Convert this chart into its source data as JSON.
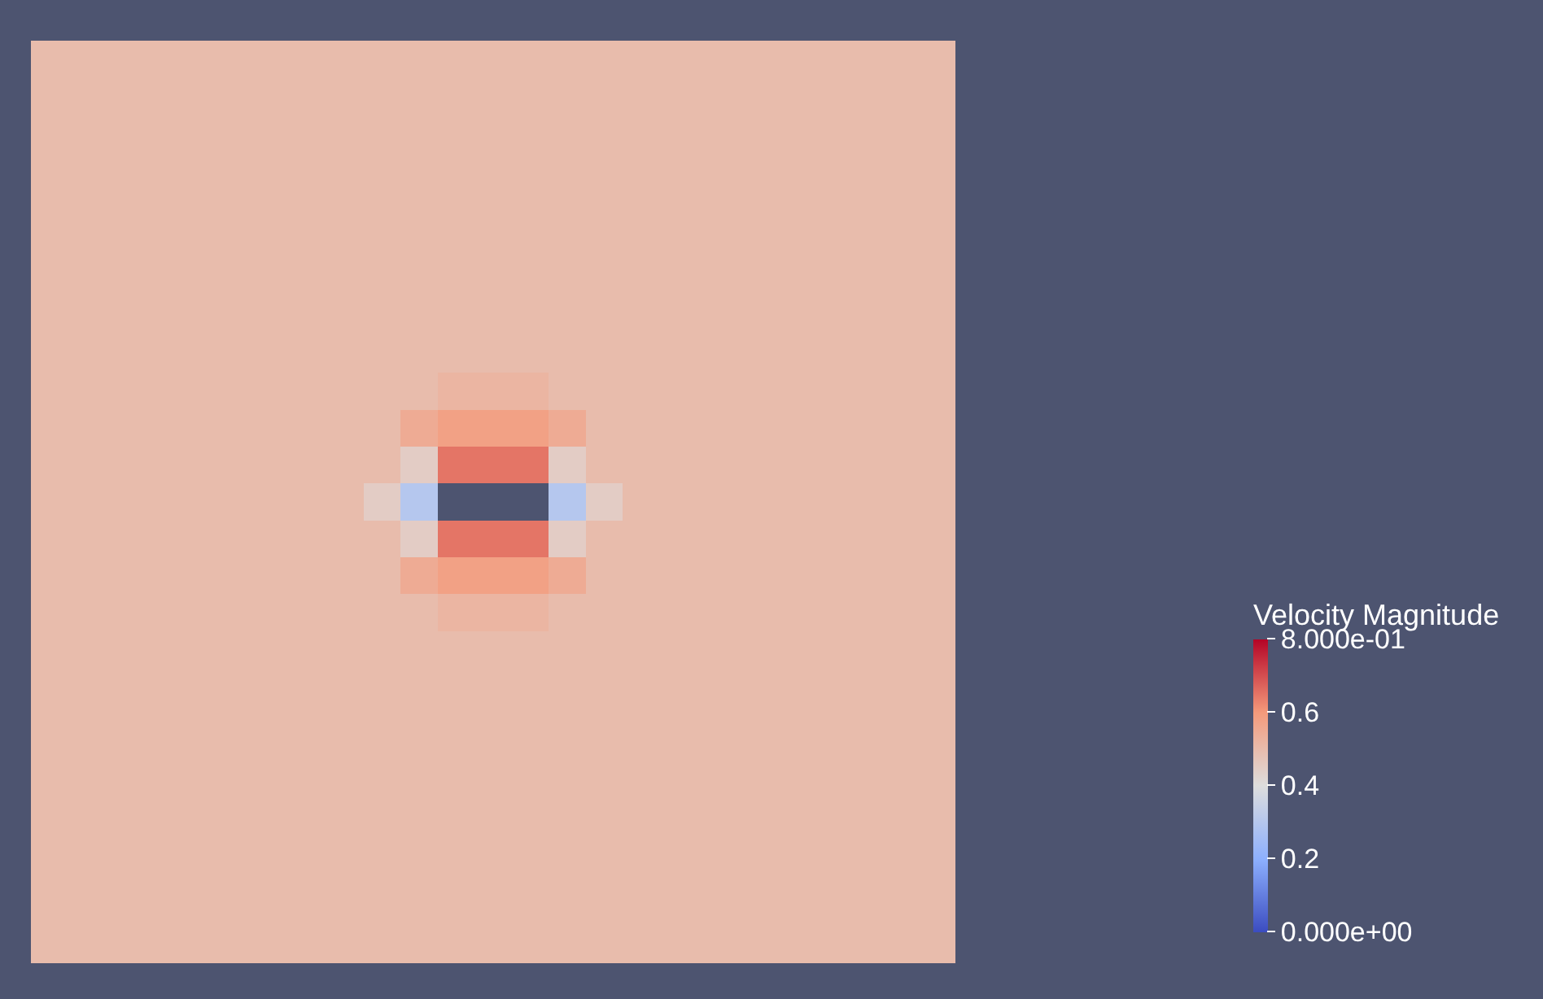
{
  "chart_data": {
    "type": "heatmap",
    "clabel": "Velocity Magnitude",
    "categories": [
      null,
      null,
      null,
      null,
      null,
      null,
      null,
      null,
      null,
      null,
      null,
      null,
      null,
      null,
      null,
      null,
      null,
      null,
      null,
      null,
      null,
      null,
      null,
      null,
      null
    ],
    "y_categories": [
      null,
      null,
      null,
      null,
      null,
      null,
      null,
      null,
      null,
      null,
      null,
      null,
      null,
      null,
      null,
      null,
      null,
      null,
      null,
      null,
      null,
      null,
      null,
      null,
      null
    ],
    "clim": [
      0,
      0.8
    ],
    "cticks": [
      {
        "value": 0,
        "label": "0.000e+00"
      },
      0.2,
      0.4,
      0.6,
      {
        "value": 0.8,
        "label": "8.000e-01"
      }
    ],
    "cells": [
      [
        0.5,
        0.5,
        0.5,
        0.5,
        0.5,
        0.5,
        0.5,
        0.5,
        0.5,
        0.5,
        0.5,
        0.5,
        0.5,
        0.5,
        0.5,
        0.5,
        0.5,
        0.5,
        0.5,
        0.5,
        0.5,
        0.5,
        0.5,
        0.5,
        0.5
      ],
      [
        0.5,
        0.5,
        0.5,
        0.5,
        0.5,
        0.5,
        0.5,
        0.5,
        0.5,
        0.5,
        0.5,
        0.5,
        0.5,
        0.5,
        0.5,
        0.5,
        0.5,
        0.5,
        0.5,
        0.5,
        0.5,
        0.5,
        0.5,
        0.5,
        0.5
      ],
      [
        0.5,
        0.5,
        0.5,
        0.5,
        0.5,
        0.5,
        0.5,
        0.5,
        0.5,
        0.5,
        0.5,
        0.5,
        0.5,
        0.5,
        0.5,
        0.5,
        0.5,
        0.5,
        0.5,
        0.5,
        0.5,
        0.5,
        0.5,
        0.5,
        0.5
      ],
      [
        0.5,
        0.5,
        0.5,
        0.5,
        0.5,
        0.5,
        0.5,
        0.5,
        0.5,
        0.5,
        0.5,
        0.5,
        0.5,
        0.5,
        0.5,
        0.5,
        0.5,
        0.5,
        0.5,
        0.5,
        0.5,
        0.5,
        0.5,
        0.5,
        0.5
      ],
      [
        0.5,
        0.5,
        0.5,
        0.5,
        0.5,
        0.5,
        0.5,
        0.5,
        0.5,
        0.5,
        0.5,
        0.5,
        0.5,
        0.5,
        0.5,
        0.5,
        0.5,
        0.5,
        0.5,
        0.5,
        0.5,
        0.5,
        0.5,
        0.5,
        0.5
      ],
      [
        0.5,
        0.5,
        0.5,
        0.5,
        0.5,
        0.5,
        0.5,
        0.5,
        0.5,
        0.5,
        0.5,
        0.5,
        0.5,
        0.5,
        0.5,
        0.5,
        0.5,
        0.5,
        0.5,
        0.5,
        0.5,
        0.5,
        0.5,
        0.5,
        0.5
      ],
      [
        0.5,
        0.5,
        0.5,
        0.5,
        0.5,
        0.5,
        0.5,
        0.5,
        0.5,
        0.5,
        0.5,
        0.5,
        0.5,
        0.5,
        0.5,
        0.5,
        0.5,
        0.5,
        0.5,
        0.5,
        0.5,
        0.5,
        0.5,
        0.5,
        0.5
      ],
      [
        0.5,
        0.5,
        0.5,
        0.5,
        0.5,
        0.5,
        0.5,
        0.5,
        0.5,
        0.5,
        0.5,
        0.5,
        0.5,
        0.5,
        0.5,
        0.5,
        0.5,
        0.5,
        0.5,
        0.5,
        0.5,
        0.5,
        0.5,
        0.5,
        0.5
      ],
      [
        0.5,
        0.5,
        0.5,
        0.5,
        0.5,
        0.5,
        0.5,
        0.5,
        0.5,
        0.5,
        0.5,
        0.5,
        0.5,
        0.5,
        0.5,
        0.5,
        0.5,
        0.5,
        0.5,
        0.5,
        0.5,
        0.5,
        0.5,
        0.5,
        0.5
      ],
      [
        0.5,
        0.5,
        0.5,
        0.5,
        0.5,
        0.5,
        0.5,
        0.5,
        0.5,
        0.5,
        0.5,
        0.52,
        0.52,
        0.52,
        0.5,
        0.5,
        0.5,
        0.5,
        0.5,
        0.5,
        0.5,
        0.5,
        0.5,
        0.5,
        0.5
      ],
      [
        0.5,
        0.5,
        0.5,
        0.5,
        0.5,
        0.5,
        0.5,
        0.5,
        0.5,
        0.5,
        0.55,
        0.58,
        0.58,
        0.58,
        0.55,
        0.5,
        0.5,
        0.5,
        0.5,
        0.5,
        0.5,
        0.5,
        0.5,
        0.5,
        0.5
      ],
      [
        0.5,
        0.5,
        0.5,
        0.5,
        0.5,
        0.5,
        0.5,
        0.5,
        0.5,
        0.5,
        0.45,
        0.65,
        0.65,
        0.65,
        0.45,
        0.5,
        0.5,
        0.5,
        0.5,
        0.5,
        0.5,
        0.5,
        0.5,
        0.5,
        0.5
      ],
      [
        0.5,
        0.5,
        0.5,
        0.5,
        0.5,
        0.5,
        0.5,
        0.5,
        0.5,
        0.45,
        0.3,
        null,
        null,
        null,
        0.3,
        0.45,
        0.5,
        0.5,
        0.5,
        0.5,
        0.5,
        0.5,
        0.5,
        0.5,
        0.5
      ],
      [
        0.5,
        0.5,
        0.5,
        0.5,
        0.5,
        0.5,
        0.5,
        0.5,
        0.5,
        0.5,
        0.45,
        0.65,
        0.65,
        0.65,
        0.45,
        0.5,
        0.5,
        0.5,
        0.5,
        0.5,
        0.5,
        0.5,
        0.5,
        0.5,
        0.5
      ],
      [
        0.5,
        0.5,
        0.5,
        0.5,
        0.5,
        0.5,
        0.5,
        0.5,
        0.5,
        0.5,
        0.55,
        0.58,
        0.58,
        0.58,
        0.55,
        0.5,
        0.5,
        0.5,
        0.5,
        0.5,
        0.5,
        0.5,
        0.5,
        0.5,
        0.5
      ],
      [
        0.5,
        0.5,
        0.5,
        0.5,
        0.5,
        0.5,
        0.5,
        0.5,
        0.5,
        0.5,
        0.5,
        0.52,
        0.52,
        0.52,
        0.5,
        0.5,
        0.5,
        0.5,
        0.5,
        0.5,
        0.5,
        0.5,
        0.5,
        0.5,
        0.5
      ],
      [
        0.5,
        0.5,
        0.5,
        0.5,
        0.5,
        0.5,
        0.5,
        0.5,
        0.5,
        0.5,
        0.5,
        0.5,
        0.5,
        0.5,
        0.5,
        0.5,
        0.5,
        0.5,
        0.5,
        0.5,
        0.5,
        0.5,
        0.5,
        0.5,
        0.5
      ],
      [
        0.5,
        0.5,
        0.5,
        0.5,
        0.5,
        0.5,
        0.5,
        0.5,
        0.5,
        0.5,
        0.5,
        0.5,
        0.5,
        0.5,
        0.5,
        0.5,
        0.5,
        0.5,
        0.5,
        0.5,
        0.5,
        0.5,
        0.5,
        0.5,
        0.5
      ],
      [
        0.5,
        0.5,
        0.5,
        0.5,
        0.5,
        0.5,
        0.5,
        0.5,
        0.5,
        0.5,
        0.5,
        0.5,
        0.5,
        0.5,
        0.5,
        0.5,
        0.5,
        0.5,
        0.5,
        0.5,
        0.5,
        0.5,
        0.5,
        0.5,
        0.5
      ],
      [
        0.5,
        0.5,
        0.5,
        0.5,
        0.5,
        0.5,
        0.5,
        0.5,
        0.5,
        0.5,
        0.5,
        0.5,
        0.5,
        0.5,
        0.5,
        0.5,
        0.5,
        0.5,
        0.5,
        0.5,
        0.5,
        0.5,
        0.5,
        0.5,
        0.5
      ],
      [
        0.5,
        0.5,
        0.5,
        0.5,
        0.5,
        0.5,
        0.5,
        0.5,
        0.5,
        0.5,
        0.5,
        0.5,
        0.5,
        0.5,
        0.5,
        0.5,
        0.5,
        0.5,
        0.5,
        0.5,
        0.5,
        0.5,
        0.5,
        0.5,
        0.5
      ],
      [
        0.5,
        0.5,
        0.5,
        0.5,
        0.5,
        0.5,
        0.5,
        0.5,
        0.5,
        0.5,
        0.5,
        0.5,
        0.5,
        0.5,
        0.5,
        0.5,
        0.5,
        0.5,
        0.5,
        0.5,
        0.5,
        0.5,
        0.5,
        0.5,
        0.5
      ],
      [
        0.5,
        0.5,
        0.5,
        0.5,
        0.5,
        0.5,
        0.5,
        0.5,
        0.5,
        0.5,
        0.5,
        0.5,
        0.5,
        0.5,
        0.5,
        0.5,
        0.5,
        0.5,
        0.5,
        0.5,
        0.5,
        0.5,
        0.5,
        0.5,
        0.5
      ],
      [
        0.5,
        0.5,
        0.5,
        0.5,
        0.5,
        0.5,
        0.5,
        0.5,
        0.5,
        0.5,
        0.5,
        0.5,
        0.5,
        0.5,
        0.5,
        0.5,
        0.5,
        0.5,
        0.5,
        0.5,
        0.5,
        0.5,
        0.5,
        0.5,
        0.5
      ],
      [
        0.5,
        0.5,
        0.5,
        0.5,
        0.5,
        0.5,
        0.5,
        0.5,
        0.5,
        0.5,
        0.5,
        0.5,
        0.5,
        0.5,
        0.5,
        0.5,
        0.5,
        0.5,
        0.5,
        0.5,
        0.5,
        0.5,
        0.5,
        0.5,
        0.5
      ]
    ]
  }
}
